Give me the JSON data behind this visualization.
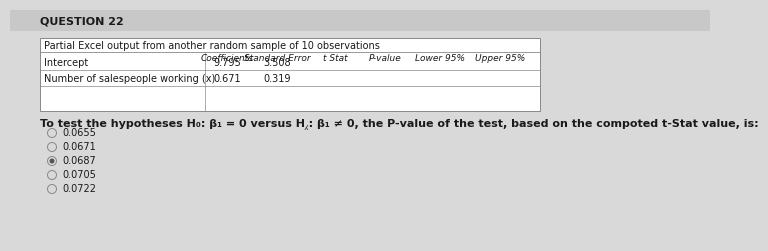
{
  "title": "QUESTION 22",
  "table_title": "Partial Excel output from another random sample of 10 observations",
  "col_headers": [
    "Coefficients",
    "Standard Error",
    "t Stat",
    "P-value",
    "Lower 95%",
    "Upper 95%"
  ],
  "row1_label": "Intercept",
  "row1_vals": [
    "9.795",
    "3.508",
    "",
    "",
    "",
    ""
  ],
  "row2_label": "Number of salespeople working (x)",
  "row2_vals": [
    "0.671",
    "0.319",
    "",
    "",
    "",
    ""
  ],
  "question_text": "To test the hypotheses H₀: β₁ = 0 versus H⁁: β₁ ≠ 0, the P-value of the test, based on the compoted t-Stat value, is:",
  "options": [
    "0.0655",
    "0.0671",
    "0.0687",
    "0.0705",
    "0.0722"
  ],
  "selected_option": 2,
  "bg_color": "#d9d9d9",
  "table_bg": "#ffffff",
  "text_color": "#1a1a1a",
  "title_fontsize": 8,
  "table_title_fontsize": 7,
  "col_header_fontsize": 6.5,
  "row_fontsize": 7,
  "question_fontsize": 8,
  "option_fontsize": 7
}
